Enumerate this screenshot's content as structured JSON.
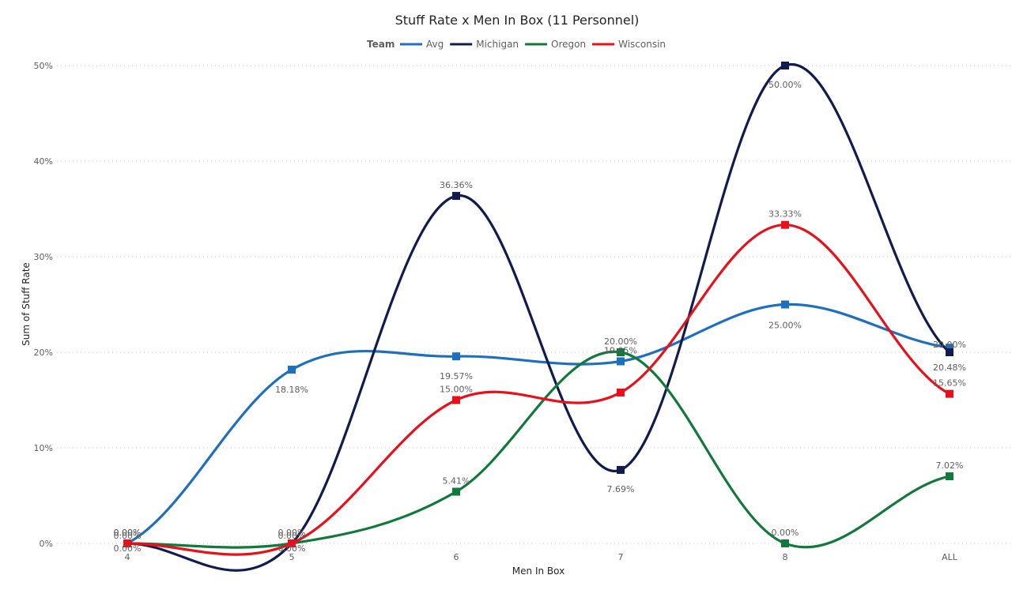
{
  "chart_data": {
    "type": "line",
    "title": "Stuff Rate x Men In Box (11 Personnel)",
    "xlabel": "Men In Box",
    "ylabel": "Sum of Stuff Rate",
    "legend_title": "Team",
    "legend_position": "top-center",
    "categories": [
      "4",
      "5",
      "6",
      "7",
      "8",
      "ALL"
    ],
    "y_ticks": [
      "0%",
      "10%",
      "20%",
      "30%",
      "40%",
      "50%"
    ],
    "ylim": [
      0,
      50
    ],
    "grid": true,
    "series": [
      {
        "name": "Avg",
        "color": "#1f6fbf",
        "values": [
          0,
          18.18,
          19.57,
          19.05,
          25.0,
          20.48
        ],
        "labels": [
          "0.00%",
          "18.18%",
          "19.57%",
          "19.05%",
          "25.00%",
          "20.48%"
        ]
      },
      {
        "name": "Michigan",
        "color": "#111c4e",
        "values": [
          0,
          0,
          36.36,
          7.69,
          50.0,
          20.0
        ],
        "labels": [
          "0.00%",
          "0.00%",
          "36.36%",
          "7.69%",
          "50.00%",
          "20.00%"
        ]
      },
      {
        "name": "Oregon",
        "color": "#117a3b",
        "values": [
          0,
          0,
          5.41,
          20.0,
          0,
          7.02
        ],
        "labels": [
          "0.00%",
          "0.00%",
          "5.41%",
          "20.00%",
          "0.00%",
          "7.02%"
        ]
      },
      {
        "name": "Wisconsin",
        "color": "#e8101a",
        "values": [
          0,
          0,
          15.0,
          15.79,
          33.33,
          15.65
        ],
        "labels": [
          "0.00%",
          "0.00%",
          "15.00%",
          "",
          "33.33%",
          "15.65%"
        ]
      }
    ]
  }
}
